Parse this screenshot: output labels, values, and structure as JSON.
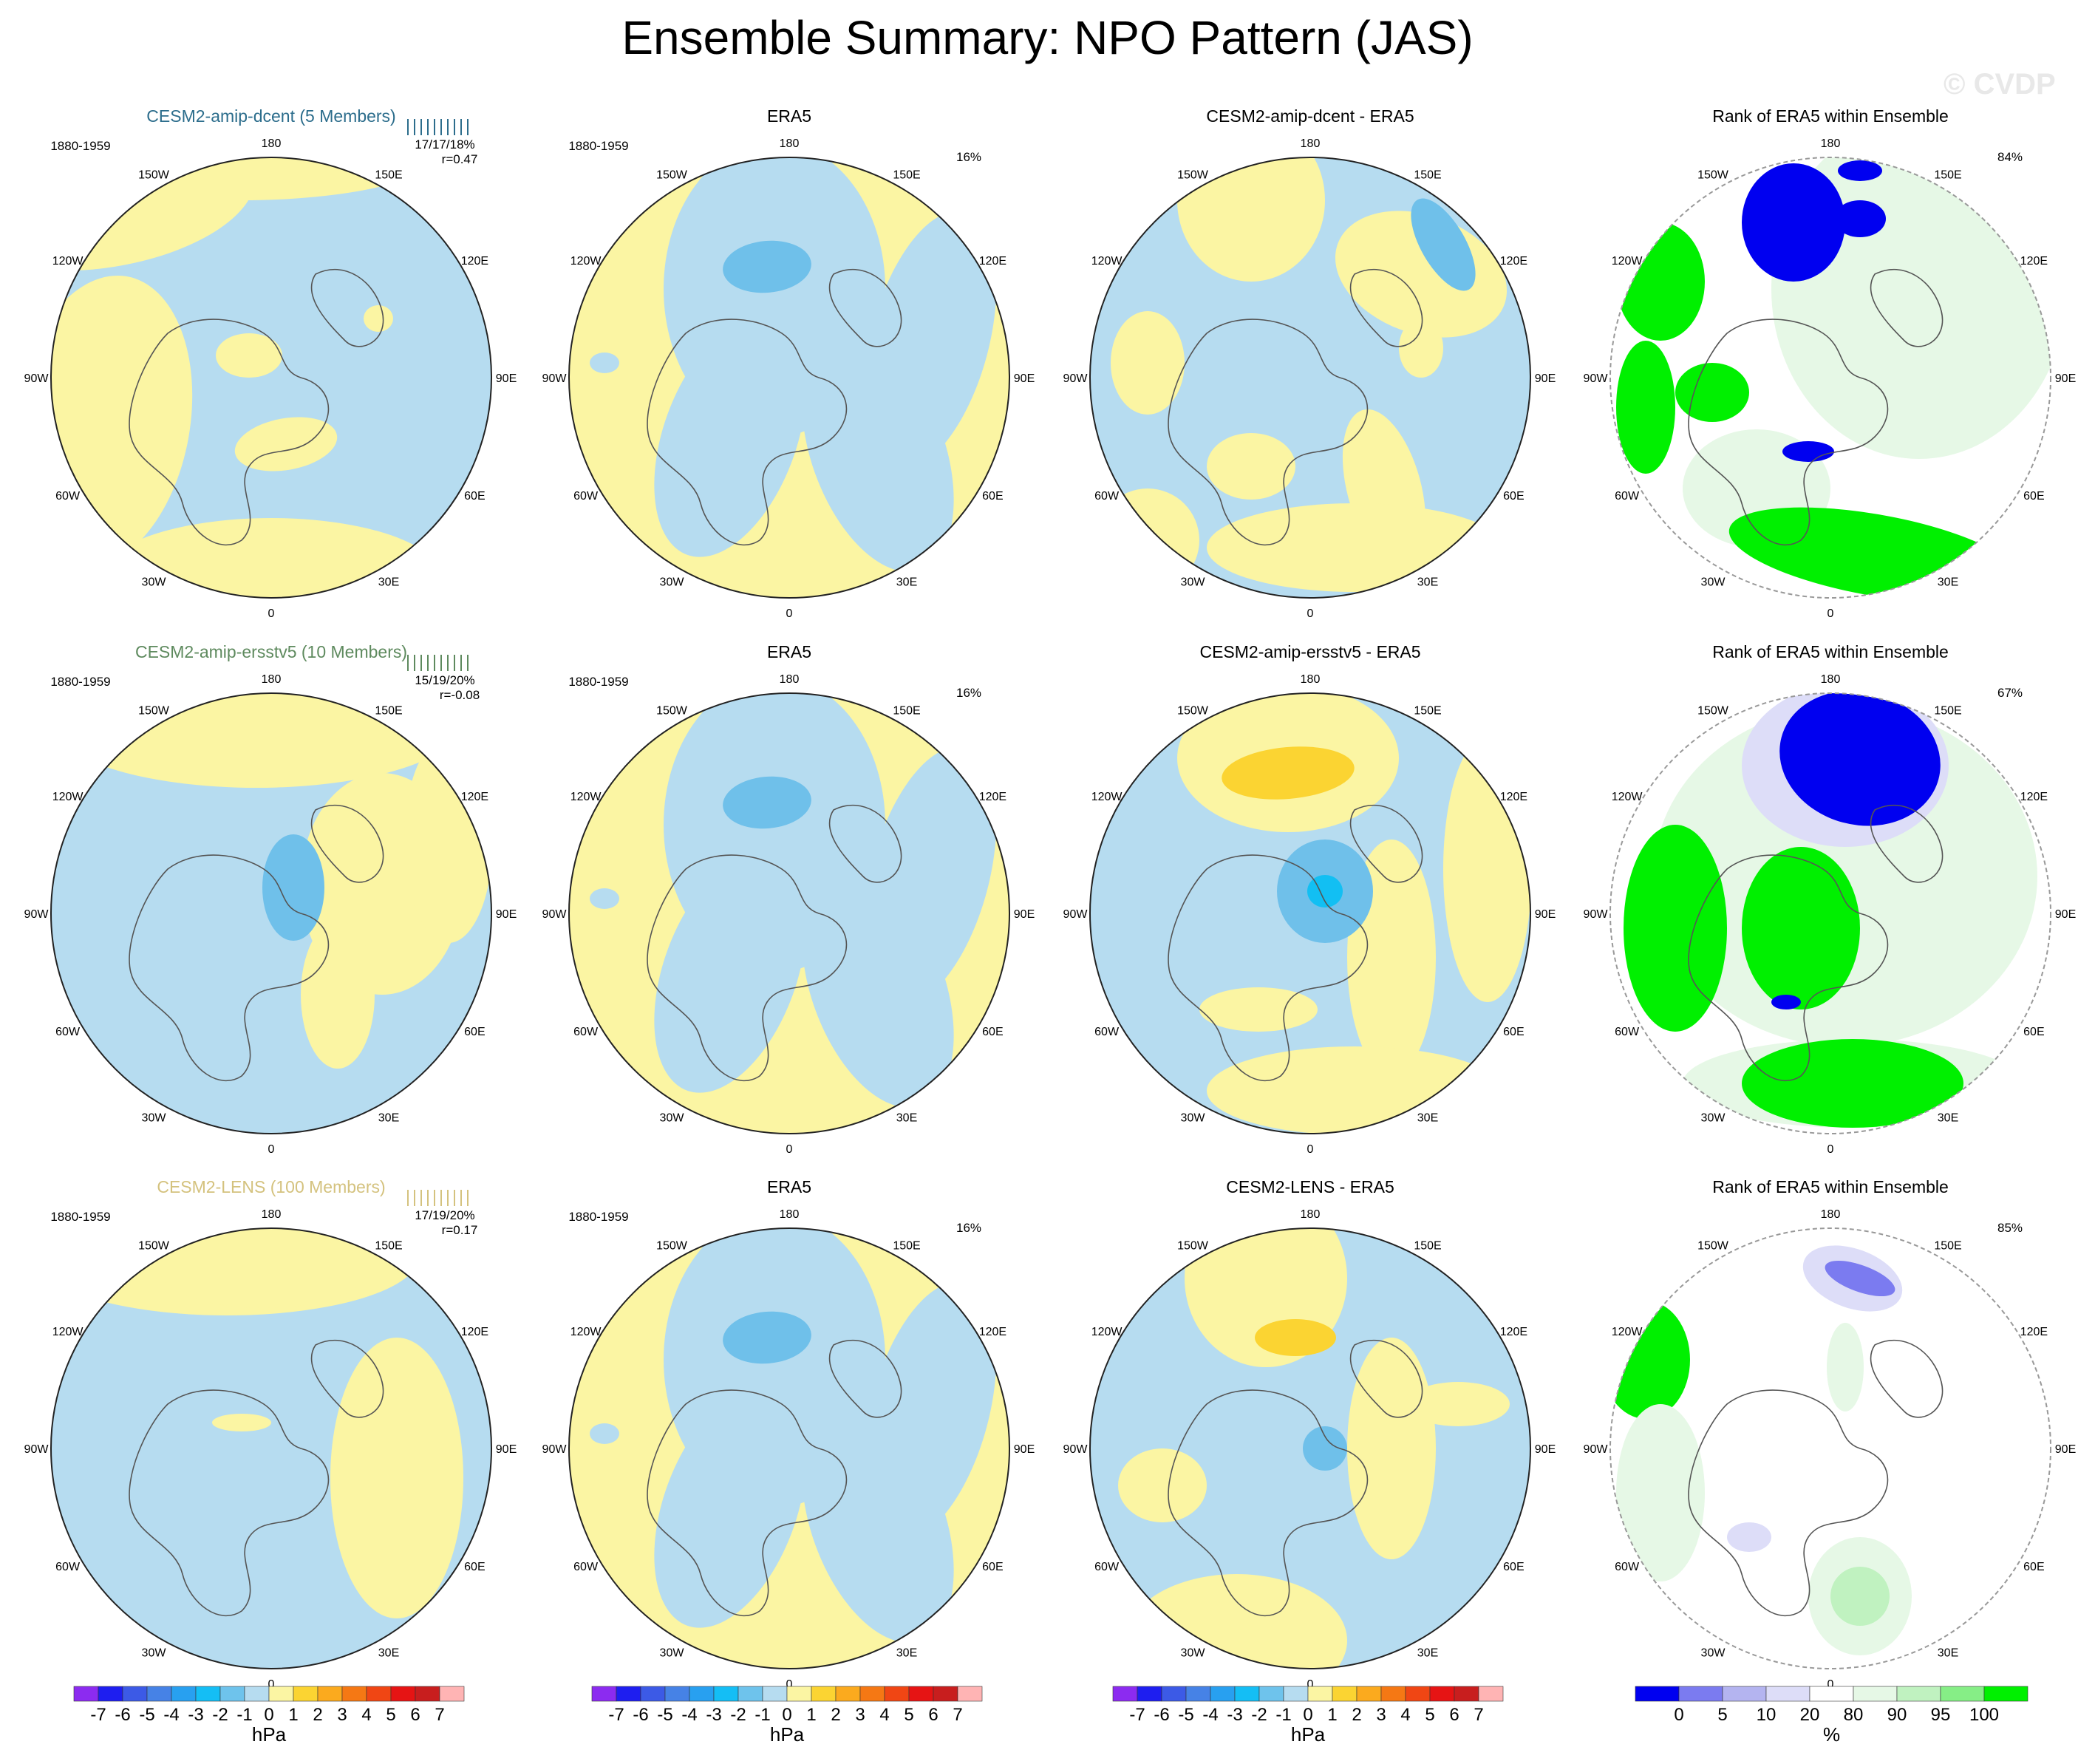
{
  "title": "Ensemble Summary: NPO Pattern (JAS)",
  "watermark": "© CVDP",
  "colors": {
    "pos1": "#fbf5a3",
    "pos2": "#fbd432",
    "neg1": "#b6dcf0",
    "neg2": "#6fc0ea",
    "neg3": "#12bff3",
    "rank_blue": "#0000f0",
    "rank_lblue": "#7b7bf0",
    "rank_vlblue": "#ddddf8",
    "rank_vlgreen": "#e6f8e6",
    "rank_lgreen": "#c0f2c0",
    "rank_green": "#00f000",
    "coast": "#555555"
  },
  "lon_labels": [
    "180",
    "150E",
    "120E",
    "90E",
    "60E",
    "30E",
    "0",
    "30W",
    "60W",
    "90W",
    "120W",
    "150W"
  ],
  "rows": [
    {
      "model": {
        "title": "CESM2-amip-dcent (5 Members)",
        "title_color": "#2c6d8c",
        "period": "1880-1959",
        "stats": "17/17/18%",
        "corr": "r=0.47"
      },
      "era5": {
        "title": "ERA5",
        "period": "1880-1959",
        "pct": "16%"
      },
      "diff": {
        "title": "CESM2-amip-dcent - ERA5"
      },
      "rank": {
        "title": "Rank of ERA5 within Ensemble",
        "pct": "84%"
      }
    },
    {
      "model": {
        "title": "CESM2-amip-ersstv5 (10 Members)",
        "title_color": "#5e8a5e",
        "period": "1880-1959",
        "stats": "15/19/20%",
        "corr": "r=-0.08"
      },
      "era5": {
        "title": "ERA5",
        "period": "1880-1959",
        "pct": "16%"
      },
      "diff": {
        "title": "CESM2-amip-ersstv5 - ERA5"
      },
      "rank": {
        "title": "Rank of ERA5 within Ensemble",
        "pct": "67%"
      }
    },
    {
      "model": {
        "title": "CESM2-LENS (100 Members)",
        "title_color": "#d4c27e",
        "period": "1880-1959",
        "stats": "17/19/20%",
        "corr": "r=0.17"
      },
      "era5": {
        "title": "ERA5",
        "period": "1880-1959",
        "pct": "16%"
      },
      "diff": {
        "title": "CESM2-LENS - ERA5"
      },
      "rank": {
        "title": "Rank of ERA5 within Ensemble",
        "pct": "85%"
      }
    }
  ],
  "colorbar_hpa": {
    "colors": [
      "#8c2bf0",
      "#1e1ef0",
      "#3c5ae6",
      "#4682e6",
      "#28a0f0",
      "#14bef5",
      "#6ec3ec",
      "#b6dcf0",
      "#fbf5a3",
      "#fbd432",
      "#fbaa1e",
      "#f57814",
      "#f04614",
      "#e61414",
      "#c81e1e",
      "#ffb4b4"
    ],
    "ticks": [
      "-7",
      "-6",
      "-5",
      "-4",
      "-3",
      "-2",
      "-1",
      "0",
      "1",
      "2",
      "3",
      "4",
      "5",
      "6",
      "7"
    ],
    "unit": "hPa"
  },
  "colorbar_rank": {
    "colors": [
      "#0000f0",
      "#7b7bf0",
      "#b4b4f0",
      "#ddddf8",
      "#ffffff",
      "#e6f8e6",
      "#c0f2c0",
      "#86ee86",
      "#00f000"
    ],
    "ticks": [
      "0",
      "5",
      "10",
      "20",
      "80",
      "90",
      "95",
      "100"
    ],
    "unit": "%"
  },
  "chart_data": {
    "type": "heatmap",
    "projection": "north polar stereographic",
    "variable": "sea level pressure NPO pattern",
    "season": "JAS",
    "units": "hPa",
    "contour_levels": [
      -7,
      -6,
      -5,
      -4,
      -3,
      -2,
      -1,
      0,
      1,
      2,
      3,
      4,
      5,
      6,
      7
    ],
    "rank_levels_percent": [
      0,
      5,
      10,
      20,
      80,
      90,
      95,
      100
    ],
    "panels": [
      {
        "row": 1,
        "column": "model",
        "name": "CESM2-amip-dcent",
        "members": 5,
        "pattern_stats": "17/17/18%",
        "pattern_correlation": 0.47
      },
      {
        "row": 1,
        "column": "observations",
        "name": "ERA5",
        "variance_explained_percent": 16
      },
      {
        "row": 1,
        "column": "difference",
        "name": "CESM2-amip-dcent - ERA5"
      },
      {
        "row": 1,
        "column": "rank",
        "name": "Rank of ERA5 within Ensemble",
        "area_percent": 84
      },
      {
        "row": 2,
        "column": "model",
        "name": "CESM2-amip-ersstv5",
        "members": 10,
        "pattern_stats": "15/19/20%",
        "pattern_correlation": -0.08
      },
      {
        "row": 2,
        "column": "observations",
        "name": "ERA5",
        "variance_explained_percent": 16
      },
      {
        "row": 2,
        "column": "difference",
        "name": "CESM2-amip-ersstv5 - ERA5"
      },
      {
        "row": 2,
        "column": "rank",
        "name": "Rank of ERA5 within Ensemble",
        "area_percent": 67
      },
      {
        "row": 3,
        "column": "model",
        "name": "CESM2-LENS",
        "members": 100,
        "pattern_stats": "17/19/20%",
        "pattern_correlation": 0.17
      },
      {
        "row": 3,
        "column": "observations",
        "name": "ERA5",
        "variance_explained_percent": 16
      },
      {
        "row": 3,
        "column": "difference",
        "name": "CESM2-LENS - ERA5"
      },
      {
        "row": 3,
        "column": "rank",
        "name": "Rank of ERA5 within Ensemble",
        "area_percent": 85
      }
    ]
  }
}
